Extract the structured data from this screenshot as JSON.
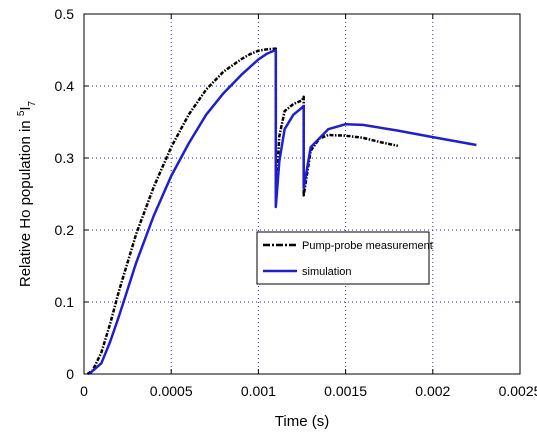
{
  "chart_data": {
    "type": "line",
    "title": "",
    "xlabel": "Time  (s)",
    "ylabel_main": "Relative Ho population in ",
    "ylabel_sup": "5",
    "ylabel_main2": "I",
    "ylabel_sub": "7",
    "xlim": [
      0,
      0.0025
    ],
    "ylim": [
      0,
      0.5
    ],
    "xticks": [
      0,
      0.0005,
      0.001,
      0.0015,
      0.002,
      0.0025
    ],
    "xtick_labels": [
      "0",
      "0.0005",
      "0.001",
      "0.0015",
      "0.002",
      "0.0025"
    ],
    "yticks": [
      0,
      0.1,
      0.2,
      0.3,
      0.4,
      0.5
    ],
    "ytick_labels": [
      "0",
      "0.1",
      "0.2",
      "0.3",
      "0.4",
      "0.5"
    ],
    "grid": true,
    "legend_position": "center-right",
    "series": [
      {
        "name": "Pump-probe measurement",
        "color": "#000000",
        "style": "dash-dot",
        "x": [
          2e-05,
          5e-05,
          0.0001,
          0.00015,
          0.0002,
          0.0003,
          0.0004,
          0.0005,
          0.0006,
          0.0007,
          0.0008,
          0.0009,
          0.00095,
          0.001,
          0.00105,
          0.0011,
          0.0011,
          0.00112,
          0.00115,
          0.0012,
          0.00125,
          0.00126,
          0.00126,
          0.0013,
          0.00135,
          0.0014,
          0.0015,
          0.0016,
          0.0017,
          0.0018
        ],
        "y": [
          0.0,
          0.005,
          0.03,
          0.07,
          0.115,
          0.195,
          0.26,
          0.315,
          0.36,
          0.395,
          0.42,
          0.437,
          0.444,
          0.449,
          0.451,
          0.452,
          0.245,
          0.33,
          0.365,
          0.375,
          0.38,
          0.385,
          0.248,
          0.31,
          0.327,
          0.332,
          0.331,
          0.328,
          0.322,
          0.317
        ]
      },
      {
        "name": "simulation",
        "color": "#1f1fd0",
        "style": "solid",
        "x": [
          3e-05,
          0.0001,
          0.00015,
          0.0002,
          0.0003,
          0.0004,
          0.0005,
          0.0006,
          0.0007,
          0.0008,
          0.0009,
          0.001,
          0.00105,
          0.0011,
          0.0011,
          0.00112,
          0.00115,
          0.0012,
          0.00125,
          0.00126,
          0.00126,
          0.0013,
          0.0014,
          0.0015,
          0.0016,
          0.0018,
          0.002,
          0.00225
        ],
        "y": [
          0.0,
          0.015,
          0.045,
          0.08,
          0.155,
          0.22,
          0.275,
          0.32,
          0.36,
          0.39,
          0.415,
          0.437,
          0.445,
          0.45,
          0.232,
          0.295,
          0.34,
          0.36,
          0.37,
          0.372,
          0.258,
          0.315,
          0.34,
          0.347,
          0.346,
          0.338,
          0.329,
          0.318
        ]
      }
    ]
  }
}
